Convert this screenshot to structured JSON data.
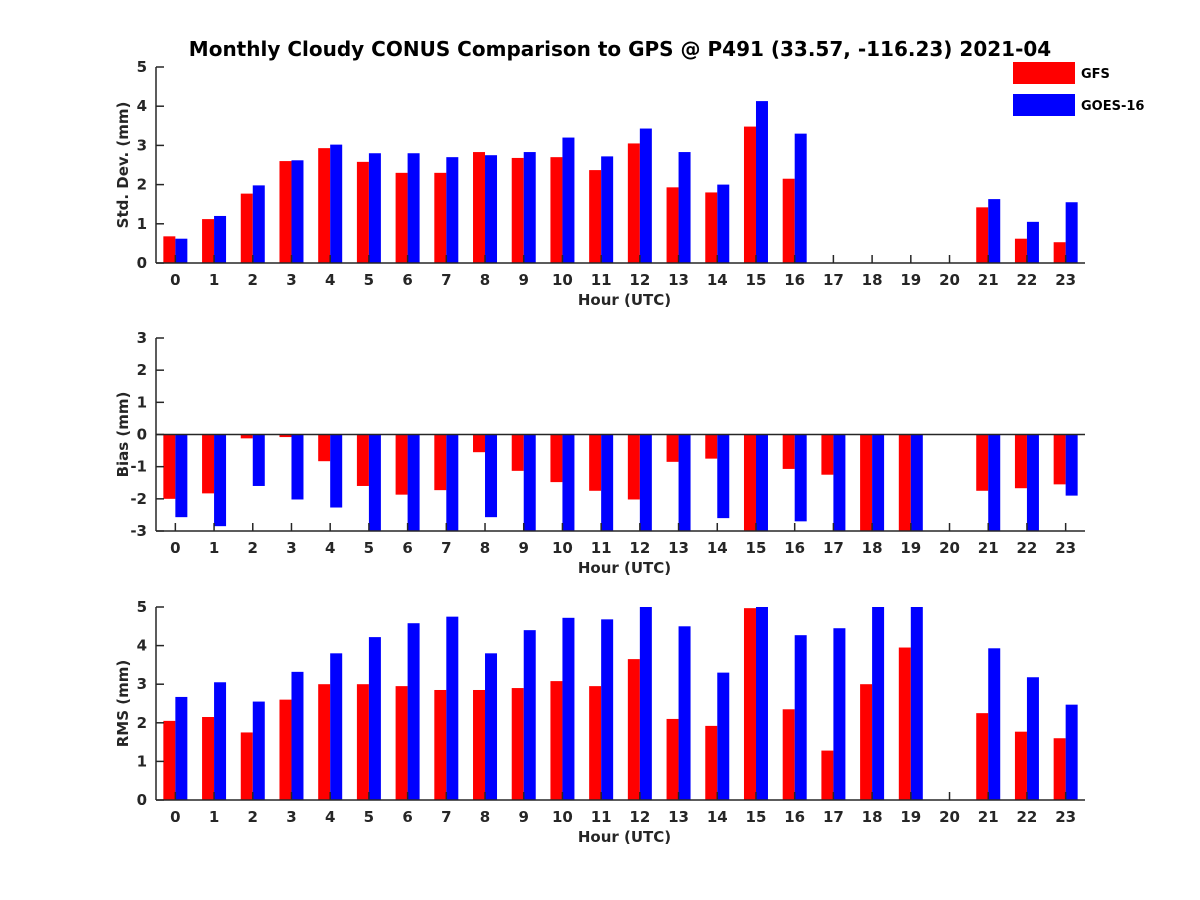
{
  "title": "Monthly Cloudy CONUS Comparison to GPS @ P491 (33.57, -116.23) 2021-04",
  "colors": {
    "GFS": "#ff0000",
    "GOES-16": "#0000ff",
    "axis": "#262626"
  },
  "chart_data": [
    {
      "type": "bar",
      "title": "Monthly Cloudy CONUS Comparison to GPS @ P491 (33.57, -116.23) 2021-04",
      "xlabel": "Hour (UTC)",
      "ylabel": "Std. Dev. (mm)",
      "ylim": [
        0,
        5
      ],
      "yticks": [
        0,
        1,
        2,
        3,
        4,
        5
      ],
      "categories": [
        "0",
        "1",
        "2",
        "3",
        "4",
        "5",
        "6",
        "7",
        "8",
        "9",
        "10",
        "11",
        "12",
        "13",
        "14",
        "15",
        "16",
        "17",
        "18",
        "19",
        "20",
        "21",
        "22",
        "23"
      ],
      "legend": "top-right",
      "series": [
        {
          "name": "GFS",
          "values": [
            0.68,
            1.12,
            1.77,
            2.6,
            2.93,
            2.58,
            2.3,
            2.3,
            2.83,
            2.68,
            2.7,
            2.37,
            3.05,
            1.93,
            1.8,
            3.48,
            2.15,
            null,
            null,
            null,
            null,
            1.42,
            0.62,
            0.53
          ]
        },
        {
          "name": "GOES-16",
          "values": [
            0.62,
            1.2,
            1.98,
            2.62,
            3.02,
            2.8,
            2.8,
            2.7,
            2.75,
            2.83,
            3.2,
            2.72,
            3.43,
            2.83,
            2.0,
            4.13,
            3.3,
            null,
            null,
            null,
            null,
            1.63,
            1.05,
            1.55
          ]
        }
      ]
    },
    {
      "type": "bar",
      "xlabel": "Hour (UTC)",
      "ylabel": "Bias (mm)",
      "ylim": [
        -3,
        3
      ],
      "yticks": [
        -3,
        -2,
        -1,
        0,
        1,
        2,
        3
      ],
      "categories": [
        "0",
        "1",
        "2",
        "3",
        "4",
        "5",
        "6",
        "7",
        "8",
        "9",
        "10",
        "11",
        "12",
        "13",
        "14",
        "15",
        "16",
        "17",
        "18",
        "19",
        "20",
        "21",
        "22",
        "23"
      ],
      "series": [
        {
          "name": "GFS",
          "values": [
            -2.0,
            -1.83,
            -0.12,
            -0.08,
            -0.83,
            -1.6,
            -1.87,
            -1.73,
            -0.55,
            -1.13,
            -1.48,
            -1.75,
            -2.02,
            -0.85,
            -0.75,
            -3.0,
            -1.07,
            -1.25,
            -3.0,
            -3.0,
            null,
            -1.75,
            -1.67,
            -1.55
          ]
        },
        {
          "name": "GOES-16",
          "values": [
            -2.57,
            -2.85,
            -1.6,
            -2.02,
            -2.27,
            -3.0,
            -3.0,
            -3.0,
            -2.57,
            -3.0,
            -3.0,
            -3.0,
            -3.0,
            -3.0,
            -2.6,
            -3.0,
            -2.7,
            -3.0,
            -3.0,
            -3.0,
            null,
            -3.0,
            -3.0,
            -1.9
          ]
        }
      ]
    },
    {
      "type": "bar",
      "xlabel": "Hour (UTC)",
      "ylabel": "RMS (mm)",
      "ylim": [
        0,
        5
      ],
      "yticks": [
        0,
        1,
        2,
        3,
        4,
        5
      ],
      "categories": [
        "0",
        "1",
        "2",
        "3",
        "4",
        "5",
        "6",
        "7",
        "8",
        "9",
        "10",
        "11",
        "12",
        "13",
        "14",
        "15",
        "16",
        "17",
        "18",
        "19",
        "20",
        "21",
        "22",
        "23"
      ],
      "series": [
        {
          "name": "GFS",
          "values": [
            2.05,
            2.15,
            1.75,
            2.6,
            3.0,
            3.0,
            2.95,
            2.85,
            2.85,
            2.9,
            3.08,
            2.95,
            3.65,
            2.1,
            1.92,
            4.97,
            2.35,
            1.28,
            3.0,
            3.95,
            null,
            2.25,
            1.77,
            1.6
          ]
        },
        {
          "name": "GOES-16",
          "values": [
            2.67,
            3.05,
            2.55,
            3.32,
            3.8,
            4.22,
            4.58,
            4.75,
            3.8,
            4.4,
            4.72,
            4.68,
            5.0,
            4.5,
            3.3,
            5.0,
            4.27,
            4.45,
            5.0,
            5.0,
            null,
            3.93,
            3.18,
            2.47
          ]
        }
      ]
    }
  ]
}
